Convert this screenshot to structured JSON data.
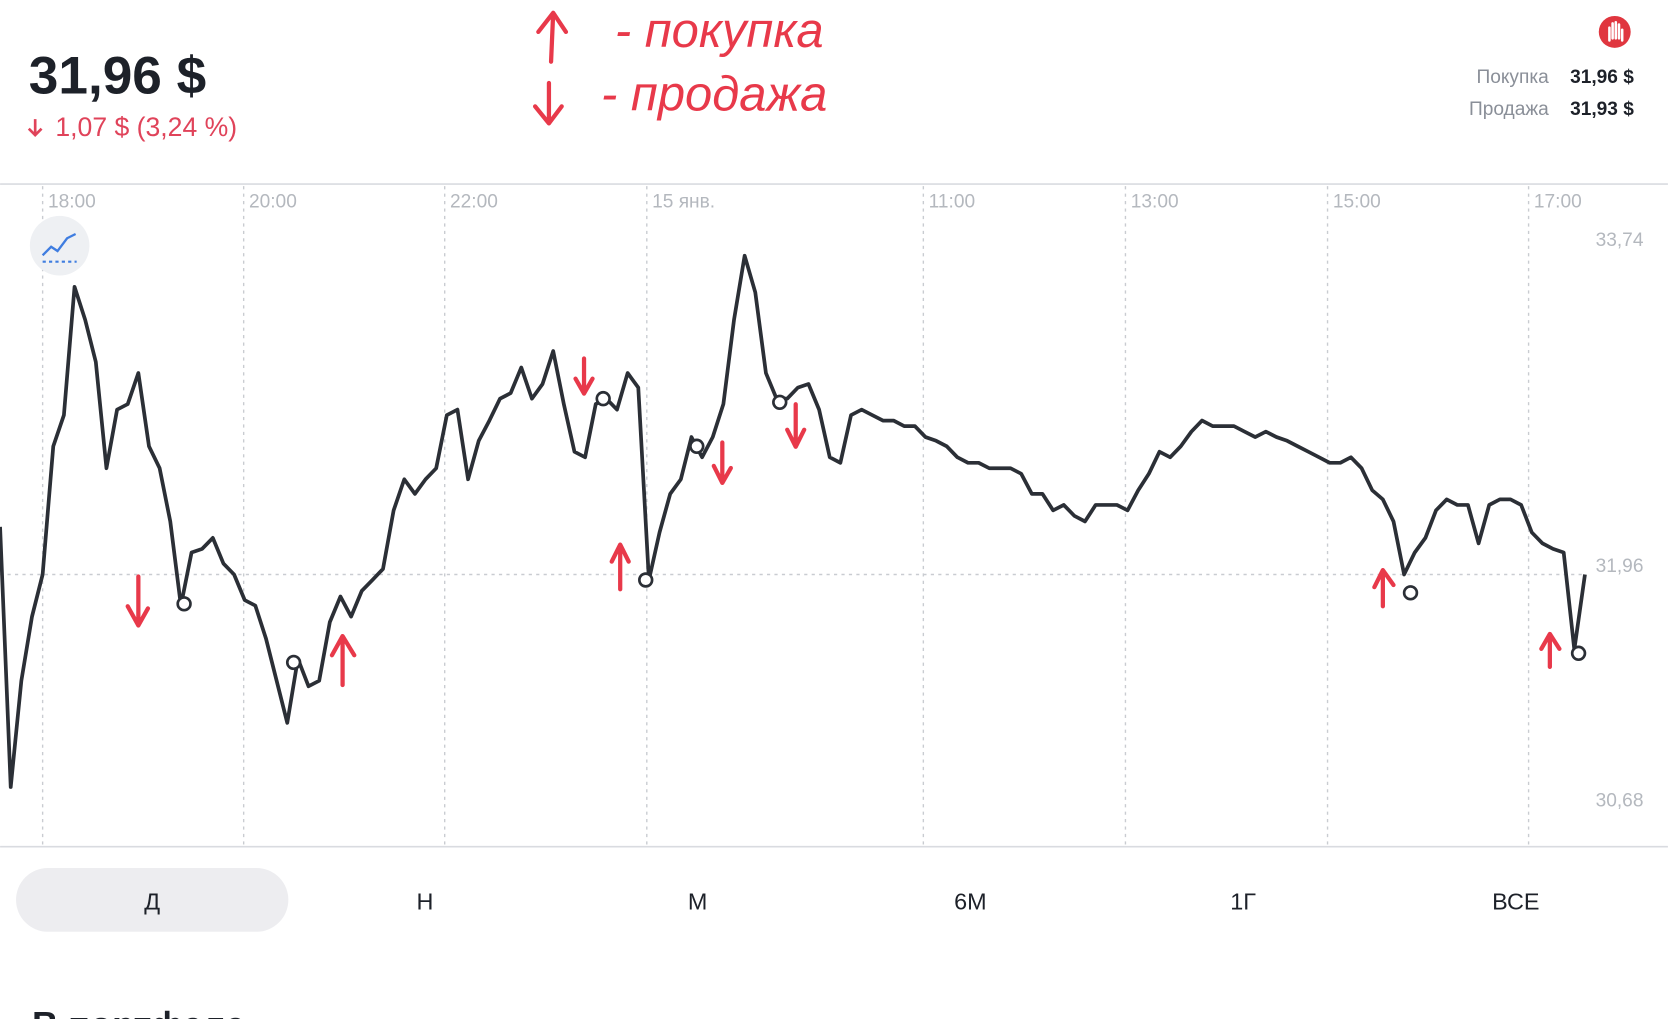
{
  "header": {
    "price": "31,96 $",
    "change": "1,07 $ (3,24 %)"
  },
  "quotes": [
    {
      "label": "Покупка",
      "value": "31,96 $"
    },
    {
      "label": "Продажа",
      "value": "31,93 $"
    }
  ],
  "annotations": [
    "- покупка",
    "- продажа"
  ],
  "chart_data": {
    "type": "line",
    "color": "#2b2f36",
    "x": [
      0,
      1,
      2,
      3,
      4,
      5,
      6,
      7,
      8,
      9,
      10,
      11,
      12,
      13,
      14,
      15,
      16,
      17,
      18,
      19,
      20,
      21,
      22,
      23,
      24,
      25,
      26,
      27,
      28,
      29,
      30,
      31,
      32,
      33,
      34,
      35,
      36,
      37,
      38,
      39,
      40,
      41,
      42,
      43,
      44,
      45,
      46,
      47,
      48,
      49,
      50,
      51,
      52,
      53,
      54,
      55,
      56,
      57,
      58,
      59,
      60,
      61,
      62,
      63,
      64,
      65,
      66,
      67,
      68,
      69,
      70,
      71,
      72,
      73,
      74,
      75,
      76,
      77,
      78,
      79,
      80,
      81,
      82,
      83,
      84,
      85,
      86,
      87,
      88,
      89,
      90,
      91,
      92,
      93,
      94,
      95,
      96,
      97,
      98,
      99,
      100,
      101,
      102,
      103,
      104,
      105,
      106,
      107,
      108,
      109,
      110,
      111,
      112,
      113,
      114,
      115,
      116,
      117,
      118,
      119,
      120,
      121,
      122,
      123,
      124,
      125,
      126,
      127,
      128,
      129,
      130,
      131,
      132,
      133,
      134,
      135,
      136,
      137,
      138,
      139,
      140,
      141,
      142,
      143,
      144,
      145,
      146,
      147,
      148,
      149
    ],
    "values": [
      32.22,
      30.8,
      31.38,
      31.73,
      31.96,
      32.66,
      32.83,
      33.53,
      33.35,
      33.12,
      32.54,
      32.86,
      32.89,
      33.06,
      32.66,
      32.54,
      32.25,
      31.79,
      32.08,
      32.1,
      32.16,
      32.02,
      31.96,
      31.82,
      31.79,
      31.61,
      31.38,
      31.15,
      31.5,
      31.35,
      31.38,
      31.7,
      31.84,
      31.73,
      31.87,
      31.93,
      31.99,
      32.31,
      32.48,
      32.4,
      32.48,
      32.54,
      32.83,
      32.86,
      32.48,
      32.69,
      32.8,
      32.92,
      32.95,
      33.09,
      32.92,
      33.0,
      33.18,
      32.89,
      32.63,
      32.6,
      32.89,
      32.92,
      32.86,
      33.06,
      32.98,
      31.93,
      32.19,
      32.4,
      32.48,
      32.71,
      32.6,
      32.71,
      32.89,
      33.35,
      33.7,
      33.5,
      33.06,
      32.92,
      32.92,
      32.98,
      33.0,
      32.86,
      32.6,
      32.57,
      32.83,
      32.86,
      32.83,
      32.8,
      32.8,
      32.77,
      32.77,
      32.71,
      32.69,
      32.66,
      32.6,
      32.57,
      32.57,
      32.54,
      32.54,
      32.54,
      32.51,
      32.4,
      32.4,
      32.31,
      32.34,
      32.28,
      32.25,
      32.34,
      32.34,
      32.34,
      32.31,
      32.42,
      32.51,
      32.63,
      32.6,
      32.66,
      32.74,
      32.8,
      32.77,
      32.77,
      32.77,
      32.74,
      32.71,
      32.74,
      32.71,
      32.69,
      32.66,
      32.63,
      32.6,
      32.57,
      32.57,
      32.6,
      32.54,
      32.42,
      32.37,
      32.25,
      31.96,
      32.08,
      32.16,
      32.31,
      32.37,
      32.34,
      32.34,
      32.13,
      32.34,
      32.37,
      32.37,
      32.34,
      32.19,
      32.13,
      32.1,
      32.08,
      31.55,
      31.96
    ],
    "markers": {
      "x": [
        17.3,
        27.6,
        56.7,
        60.7,
        65.5,
        73.3,
        132.6,
        148.4
      ],
      "values": [
        31.8,
        31.48,
        32.92,
        31.93,
        32.66,
        32.9,
        31.86,
        31.53
      ]
    },
    "xlim": [
      0,
      156.8
    ],
    "xticks": [
      {
        "value": 4,
        "label": "18:00"
      },
      {
        "value": 22.9,
        "label": "20:00"
      },
      {
        "value": 41.8,
        "label": "22:00"
      },
      {
        "value": 60.8,
        "label": "15 янв."
      },
      {
        "value": 86.8,
        "label": "11:00"
      },
      {
        "value": 105.8,
        "label": "13:00"
      },
      {
        "value": 124.8,
        "label": "15:00"
      },
      {
        "value": 143.7,
        "label": "17:00"
      }
    ],
    "ylim": [
      30.48,
      34.08
    ],
    "yticks": [
      {
        "value": 33.74,
        "label": "33,74"
      },
      {
        "value": 31.96,
        "label": "31,96"
      },
      {
        "value": 30.68,
        "label": "30,68"
      }
    ],
    "price_line": 31.96
  },
  "periods": [
    "Д",
    "Н",
    "М",
    "6М",
    "1Г",
    "ВСЕ"
  ],
  "section_title": "В портфеле"
}
